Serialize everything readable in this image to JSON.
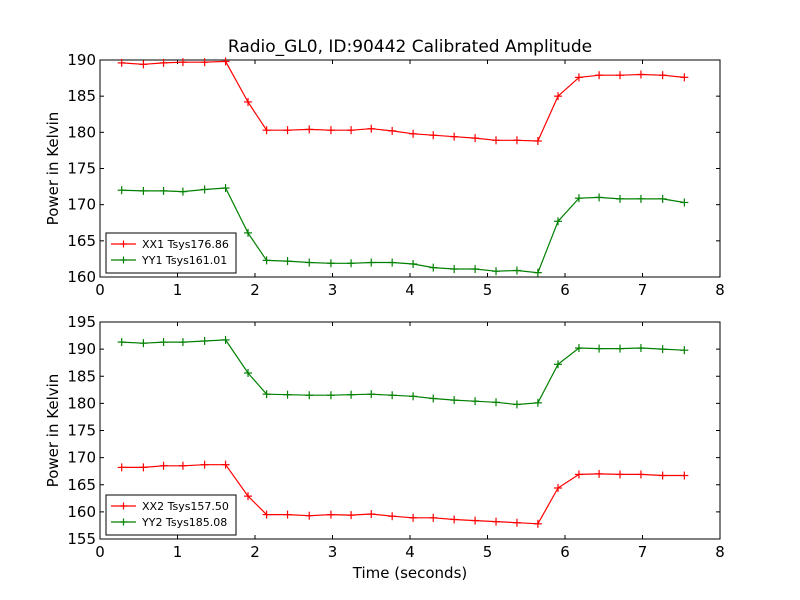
{
  "figure": {
    "title": "Radio_GL0, ID:90442 Calibrated Amplitude"
  },
  "chart_data": [
    {
      "type": "line",
      "title": "Radio_GL0, ID:90442 Calibrated Amplitude",
      "xlabel": "",
      "ylabel": "Power in Kelvin",
      "xlim": [
        0,
        8
      ],
      "ylim": [
        160,
        190
      ],
      "xticks": [
        0,
        1,
        2,
        3,
        4,
        5,
        6,
        7,
        8
      ],
      "yticks": [
        160,
        165,
        170,
        175,
        180,
        185,
        190
      ],
      "grid": false,
      "legend_position": "lower-left",
      "x": [
        0.28,
        0.56,
        0.82,
        1.07,
        1.35,
        1.62,
        1.91,
        2.15,
        2.42,
        2.7,
        2.98,
        3.24,
        3.5,
        3.77,
        4.04,
        4.3,
        4.57,
        4.84,
        5.11,
        5.38,
        5.65,
        5.91,
        6.18,
        6.44,
        6.71,
        6.98,
        7.26,
        7.54
      ],
      "series": [
        {
          "name": "XX1 Tsys176.86",
          "color": "#ff0000",
          "values": [
            189.6,
            189.4,
            189.6,
            189.7,
            189.7,
            189.8,
            184.2,
            180.3,
            180.3,
            180.4,
            180.3,
            180.3,
            180.5,
            180.2,
            179.8,
            179.6,
            179.4,
            179.2,
            178.9,
            178.9,
            178.8,
            185.0,
            187.6,
            187.9,
            187.9,
            188.0,
            187.9,
            187.6
          ]
        },
        {
          "name": "YY1 Tsys161.01",
          "color": "#008000",
          "values": [
            172.0,
            171.9,
            171.9,
            171.8,
            172.1,
            172.3,
            166.1,
            162.3,
            162.2,
            162.0,
            161.9,
            161.9,
            162.0,
            162.0,
            161.8,
            161.3,
            161.1,
            161.1,
            160.8,
            160.9,
            160.6,
            167.7,
            170.9,
            171.0,
            170.8,
            170.8,
            170.8,
            170.3
          ]
        }
      ]
    },
    {
      "type": "line",
      "title": "",
      "xlabel": "Time (seconds)",
      "ylabel": "Power in Kelvin",
      "xlim": [
        0,
        8
      ],
      "ylim": [
        155,
        195
      ],
      "xticks": [
        0,
        1,
        2,
        3,
        4,
        5,
        6,
        7,
        8
      ],
      "yticks": [
        155,
        160,
        165,
        170,
        175,
        180,
        185,
        190,
        195
      ],
      "grid": false,
      "legend_position": "lower-left",
      "x": [
        0.28,
        0.56,
        0.82,
        1.07,
        1.35,
        1.62,
        1.91,
        2.15,
        2.42,
        2.7,
        2.98,
        3.24,
        3.5,
        3.77,
        4.04,
        4.3,
        4.57,
        4.84,
        5.11,
        5.38,
        5.65,
        5.91,
        6.18,
        6.44,
        6.71,
        6.98,
        7.26,
        7.54
      ],
      "series": [
        {
          "name": "XX2 Tsys157.50",
          "color": "#ff0000",
          "values": [
            168.2,
            168.2,
            168.5,
            168.5,
            168.7,
            168.7,
            162.9,
            159.5,
            159.5,
            159.3,
            159.5,
            159.4,
            159.6,
            159.2,
            158.9,
            158.9,
            158.6,
            158.4,
            158.2,
            158.0,
            157.8,
            164.4,
            166.9,
            167.0,
            166.9,
            166.9,
            166.7,
            166.7
          ]
        },
        {
          "name": "YY2 Tsys185.08",
          "color": "#008000",
          "values": [
            191.3,
            191.1,
            191.3,
            191.3,
            191.5,
            191.7,
            185.6,
            181.7,
            181.6,
            181.5,
            181.5,
            181.6,
            181.7,
            181.5,
            181.3,
            180.9,
            180.6,
            180.4,
            180.2,
            179.8,
            180.1,
            187.2,
            190.2,
            190.1,
            190.1,
            190.2,
            190.0,
            189.8
          ]
        }
      ]
    }
  ]
}
